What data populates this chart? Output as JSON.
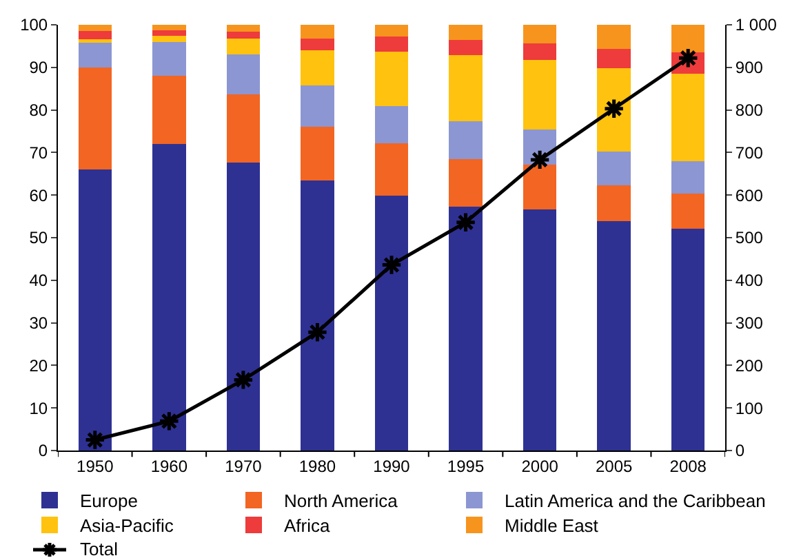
{
  "chart_data": {
    "type": "bar",
    "stacked": true,
    "categories": [
      "1950",
      "1960",
      "1970",
      "1980",
      "1990",
      "1995",
      "2000",
      "2005",
      "2008"
    ],
    "ylim": [
      0,
      100
    ],
    "yticks": [
      0,
      10,
      20,
      30,
      40,
      50,
      60,
      70,
      80,
      90,
      100
    ],
    "y2lim": [
      0,
      1000
    ],
    "y2ticks": [
      0,
      100,
      200,
      300,
      400,
      500,
      600,
      700,
      800,
      900,
      {
        "value": 1000,
        "label": "1 000"
      }
    ],
    "legend": "bottom",
    "series": [
      {
        "name": "Europe",
        "color": "#2e3192",
        "values": [
          66,
          72,
          67.6,
          63.4,
          59.9,
          57.3,
          56.7,
          53.9,
          52.1
        ]
      },
      {
        "name": "North America",
        "color": "#f26522",
        "values": [
          24,
          16,
          16.1,
          12.7,
          12.3,
          11.2,
          10.5,
          8.4,
          8.2
        ]
      },
      {
        "name": "Latin America and the Caribbean",
        "color": "#8c96d2",
        "values": [
          6,
          7.9,
          9.4,
          9.7,
          8.7,
          8.9,
          8.2,
          8,
          7.6
        ]
      },
      {
        "name": "Asia-Pacific",
        "color": "#ffc20e",
        "values": [
          0.6,
          1.5,
          3.6,
          8.2,
          12.8,
          15.5,
          16.3,
          19.5,
          20.6
        ]
      },
      {
        "name": "Africa",
        "color": "#ee3b3b",
        "values": [
          2,
          1.3,
          1.7,
          2.7,
          3.5,
          3.6,
          4,
          4.5,
          5
        ]
      },
      {
        "name": "Middle East",
        "color": "#f7941d",
        "values": [
          1.4,
          1.3,
          1.6,
          3.3,
          2.8,
          3.5,
          4.3,
          5.7,
          6.5
        ]
      },
      {
        "name": "Total",
        "type": "line",
        "axis": "y2",
        "color": "#000000",
        "marker": "cross",
        "line_style": "solid",
        "values": [
          25,
          69,
          166,
          278,
          436,
          536,
          683,
          803,
          922
        ]
      }
    ]
  }
}
